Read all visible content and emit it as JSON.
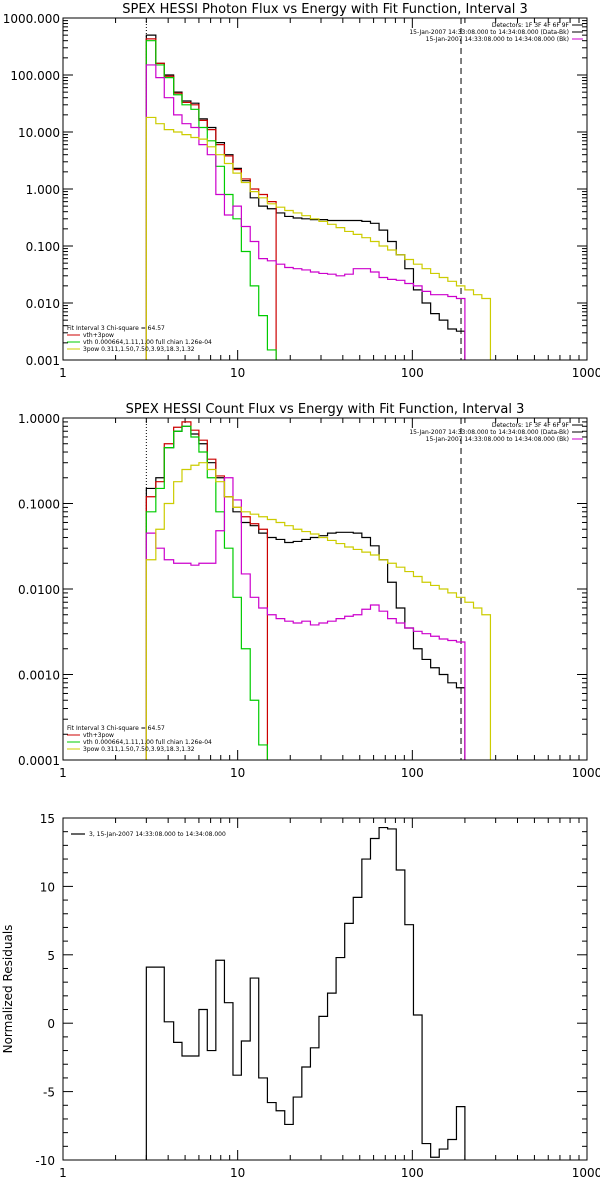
{
  "chart_data": [
    {
      "type": "line",
      "title": "SPEX HESSI Photon Flux vs Energy with Fit Function, Interval 3",
      "xscale": "log",
      "yscale": "log",
      "xlim": [
        1,
        1000
      ],
      "ylim": [
        0.001,
        1000
      ],
      "xtick_labels": [
        "1",
        "10",
        "100",
        "1000"
      ],
      "ytick_labels": [
        "0.001",
        "0.010",
        "0.100",
        "1.000",
        "10.000",
        "100.000",
        "1000.000"
      ],
      "header_lines": [
        "Detectors: 1F 3F 4F 6F 9F",
        "15-Jan-2007 14:33:08.000 to 14:34:08.000 (Data-Bk)",
        "15-Jan-2007 14:33:08.000 to 14:34:08.000 (Bk)"
      ],
      "header_colors": [
        "#000000",
        "#000000",
        "#cc00cc"
      ],
      "legend_lines": [
        "Fit Interval 3   Chi-square = 64.57",
        "vth+3pow",
        "vth 0.000664,1.11,1.00   full chian 1.26e-04",
        "3pow 0.311,1.50,7.50,3.93,18.3,1.32"
      ],
      "legend_colors": [
        "#000000",
        "#cc0000",
        "#00cc00",
        "#cccc00"
      ],
      "vlines": [
        {
          "x": 3.0,
          "style": "dotted"
        },
        {
          "x": 190,
          "style": "dashed"
        }
      ],
      "series": [
        {
          "color": "#000000",
          "edges": [
            3,
            3.4,
            3.8,
            4.3,
            4.8,
            5.4,
            6,
            6.7,
            7.5,
            8.4,
            9.4,
            10.5,
            11.8,
            13.2,
            14.8,
            16.6,
            18.6,
            20.8,
            23.3,
            26.1,
            29.2,
            32.7,
            36.6,
            41,
            45.9,
            51.4,
            57.6,
            64.5,
            72.2,
            80.9,
            90.6,
            101.5,
            113.7,
            127.3,
            142.6,
            159.7,
            178.9,
            200
          ],
          "values": [
            500,
            160,
            100,
            50,
            35,
            32,
            17,
            12,
            6.5,
            4,
            2.3,
            1.4,
            0.7,
            0.5,
            0.45,
            0.38,
            0.33,
            0.31,
            0.3,
            0.29,
            0.29,
            0.28,
            0.28,
            0.28,
            0.28,
            0.27,
            0.25,
            0.19,
            0.12,
            0.07,
            0.04,
            0.017,
            0.01,
            0.0065,
            0.005,
            0.0035,
            0.0032
          ]
        },
        {
          "color": "#cc0000",
          "edges": [
            3,
            3.4,
            3.8,
            4.3,
            4.8,
            5.4,
            6,
            6.7,
            7.5,
            8.4,
            9.4,
            10.5,
            11.8,
            13.2,
            14.8,
            16.6
          ],
          "values": [
            430,
            160,
            95,
            48,
            33,
            30,
            16,
            11,
            6,
            3.8,
            2.2,
            1.5,
            1.0,
            0.8,
            0.6
          ]
        },
        {
          "color": "#00cc00",
          "edges": [
            3,
            3.4,
            3.8,
            4.3,
            4.8,
            5.4,
            6,
            6.7,
            7.5,
            8.4,
            9.4,
            10.5,
            11.8,
            13.2,
            14.8,
            16.6
          ],
          "values": [
            400,
            150,
            90,
            45,
            30,
            25,
            12,
            7,
            2.5,
            0.8,
            0.3,
            0.08,
            0.02,
            0.006,
            0.0015
          ]
        },
        {
          "color": "#cc00cc",
          "edges": [
            3,
            3.4,
            3.8,
            4.3,
            4.8,
            5.4,
            6,
            6.7,
            7.5,
            8.4,
            9.4,
            10.5,
            11.8,
            13.2,
            14.8,
            16.6,
            18.6,
            20.8,
            23.3,
            26.1,
            29.2,
            32.7,
            36.6,
            41,
            45.9,
            51.4,
            57.6,
            64.5,
            72.2,
            80.9,
            90.6,
            101.5,
            113.7,
            127.3,
            142.6,
            159.7,
            178.9,
            200
          ],
          "values": [
            150,
            90,
            40,
            20,
            14,
            12,
            6,
            4,
            0.8,
            0.35,
            0.5,
            0.22,
            0.12,
            0.06,
            0.055,
            0.048,
            0.042,
            0.04,
            0.038,
            0.035,
            0.033,
            0.032,
            0.03,
            0.032,
            0.04,
            0.04,
            0.035,
            0.028,
            0.026,
            0.025,
            0.022,
            0.02,
            0.016,
            0.014,
            0.014,
            0.013,
            0.012
          ]
        },
        {
          "color": "#cccc00",
          "edges": [
            3,
            3.4,
            3.8,
            4.3,
            4.8,
            5.4,
            6,
            6.7,
            7.5,
            8.4,
            9.4,
            10.5,
            11.8,
            13.2,
            14.8,
            16.6,
            18.6,
            20.8,
            23.3,
            26.1,
            29.2,
            32.7,
            36.6,
            41,
            45.9,
            51.4,
            57.6,
            64.5,
            72.2,
            80.9,
            90.6,
            101.5,
            113.7,
            127.3,
            142.6,
            159.7,
            178.9,
            200,
            224,
            250,
            280
          ],
          "values": [
            18,
            14,
            11,
            10,
            9,
            8,
            7.5,
            5.5,
            4,
            2.8,
            1.9,
            1.3,
            0.9,
            0.7,
            0.55,
            0.48,
            0.42,
            0.38,
            0.34,
            0.3,
            0.27,
            0.24,
            0.21,
            0.18,
            0.16,
            0.14,
            0.12,
            0.1,
            0.085,
            0.07,
            0.058,
            0.048,
            0.04,
            0.033,
            0.028,
            0.024,
            0.02,
            0.017,
            0.014,
            0.012
          ]
        }
      ]
    },
    {
      "type": "line",
      "title": "SPEX HESSI Count Flux vs Energy with Fit Function, Interval 3",
      "xscale": "log",
      "yscale": "log",
      "xlim": [
        1,
        1000
      ],
      "ylim": [
        0.0001,
        1
      ],
      "xtick_labels": [
        "1",
        "10",
        "100",
        "1000"
      ],
      "ytick_labels": [
        "0.0001",
        "0.0010",
        "0.0100",
        "0.1000",
        "1.0000"
      ],
      "header_lines": [
        "Detectors: 1F 3F 4F 6F 9F",
        "15-Jan-2007 14:33:08.000 to 14:34:08.000 (Data-Bk)",
        "15-Jan-2007 14:33:08.000 to 14:34:08.000 (Bk)"
      ],
      "header_colors": [
        "#000000",
        "#000000",
        "#cc00cc"
      ],
      "legend_lines": [
        "Fit Interval 3   Chi-square = 64.57",
        "vth+3pow",
        "vth 0.000664,1.11,1.00   full chian 1.26e-04",
        "3pow 0.311,1.50,7.50,3.93,18.3,1.32"
      ],
      "legend_colors": [
        "#000000",
        "#cc0000",
        "#00cc00",
        "#cccc00"
      ],
      "vlines": [
        {
          "x": 3.0,
          "style": "dotted"
        },
        {
          "x": 190,
          "style": "dashed"
        }
      ],
      "series": [
        {
          "color": "#000000",
          "edges": [
            3,
            3.4,
            3.8,
            4.3,
            4.8,
            5.4,
            6,
            6.7,
            7.5,
            8.4,
            9.4,
            10.5,
            11.8,
            13.2,
            14.8,
            16.6,
            18.6,
            20.8,
            23.3,
            26.1,
            29.2,
            32.7,
            36.6,
            41,
            45.9,
            51.4,
            57.6,
            64.5,
            72.2,
            80.9,
            90.6,
            101.5,
            113.7,
            127.3,
            142.6,
            159.7,
            178.9,
            200
          ],
          "values": [
            0.15,
            0.2,
            0.45,
            0.7,
            0.8,
            0.65,
            0.5,
            0.3,
            0.2,
            0.12,
            0.08,
            0.06,
            0.055,
            0.045,
            0.04,
            0.038,
            0.035,
            0.036,
            0.038,
            0.04,
            0.042,
            0.045,
            0.046,
            0.046,
            0.045,
            0.04,
            0.032,
            0.022,
            0.012,
            0.006,
            0.0035,
            0.002,
            0.0015,
            0.0012,
            0.001,
            0.0008,
            0.0007
          ]
        },
        {
          "color": "#cc0000",
          "edges": [
            3,
            3.4,
            3.8,
            4.3,
            4.8,
            5.4,
            6,
            6.7,
            7.5,
            8.4,
            9.4,
            10.5,
            11.8,
            13.2,
            14.8
          ],
          "values": [
            0.12,
            0.18,
            0.5,
            0.78,
            0.9,
            0.72,
            0.55,
            0.33,
            0.21,
            0.12,
            0.09,
            0.07,
            0.058,
            0.05
          ]
        },
        {
          "color": "#00cc00",
          "edges": [
            3,
            3.4,
            3.8,
            4.3,
            4.8,
            5.4,
            6,
            6.7,
            7.5,
            8.4,
            9.4,
            10.5,
            11.8,
            13.2,
            14.8
          ],
          "values": [
            0.08,
            0.15,
            0.45,
            0.7,
            0.8,
            0.6,
            0.4,
            0.2,
            0.08,
            0.03,
            0.008,
            0.002,
            0.0005,
            0.00015
          ]
        },
        {
          "color": "#cc00cc",
          "edges": [
            3,
            3.4,
            3.8,
            4.3,
            4.8,
            5.4,
            6,
            6.7,
            7.5,
            8.4,
            9.4,
            10.5,
            11.8,
            13.2,
            14.8,
            16.6,
            18.6,
            20.8,
            23.3,
            26.1,
            29.2,
            32.7,
            36.6,
            41,
            45.9,
            51.4,
            57.6,
            64.5,
            72.2,
            80.9,
            90.6,
            101.5,
            113.7,
            127.3,
            142.6,
            159.7,
            178.9,
            200
          ],
          "values": [
            0.045,
            0.03,
            0.022,
            0.02,
            0.02,
            0.019,
            0.02,
            0.02,
            0.048,
            0.2,
            0.11,
            0.015,
            0.008,
            0.006,
            0.005,
            0.0045,
            0.0042,
            0.004,
            0.0042,
            0.0038,
            0.004,
            0.0042,
            0.0045,
            0.0048,
            0.005,
            0.0058,
            0.0065,
            0.0055,
            0.0045,
            0.004,
            0.0035,
            0.0032,
            0.003,
            0.0028,
            0.0026,
            0.0025,
            0.0024
          ]
        },
        {
          "color": "#cccc00",
          "edges": [
            3,
            3.4,
            3.8,
            4.3,
            4.8,
            5.4,
            6,
            6.7,
            7.5,
            8.4,
            9.4,
            10.5,
            11.8,
            13.2,
            14.8,
            16.6,
            18.6,
            20.8,
            23.3,
            26.1,
            29.2,
            32.7,
            36.6,
            41,
            45.9,
            51.4,
            57.6,
            64.5,
            72.2,
            80.9,
            90.6,
            101.5,
            113.7,
            127.3,
            142.6,
            159.7,
            178.9,
            200,
            224,
            250,
            280
          ],
          "values": [
            0.022,
            0.05,
            0.1,
            0.18,
            0.25,
            0.28,
            0.3,
            0.25,
            0.18,
            0.12,
            0.09,
            0.08,
            0.075,
            0.07,
            0.065,
            0.06,
            0.055,
            0.05,
            0.047,
            0.044,
            0.04,
            0.037,
            0.034,
            0.031,
            0.029,
            0.027,
            0.025,
            0.022,
            0.02,
            0.018,
            0.016,
            0.014,
            0.012,
            0.011,
            0.01,
            0.009,
            0.008,
            0.007,
            0.006,
            0.005
          ]
        }
      ]
    },
    {
      "type": "line",
      "title": "",
      "xscale": "log",
      "yscale": "linear",
      "xlim": [
        1,
        1000
      ],
      "ylim": [
        -10,
        15
      ],
      "ylabel": "Normalized Residuals",
      "xtick_labels": [
        "1",
        "10",
        "100",
        "1000"
      ],
      "ytick_labels": [
        "-10",
        "-5",
        "0",
        "5",
        "10",
        "15"
      ],
      "legend_lines": [
        "3, 15-Jan-2007 14:33:08.000 to 14:34:08.000"
      ],
      "legend_colors": [
        "#000000"
      ],
      "series": [
        {
          "color": "#000000",
          "edges": [
            3,
            3.4,
            3.8,
            4.3,
            4.8,
            5.4,
            6,
            6.7,
            7.5,
            8.4,
            9.4,
            10.5,
            11.8,
            13.2,
            14.8,
            16.6,
            18.6,
            20.8,
            23.3,
            26.1,
            29.2,
            32.7,
            36.6,
            41,
            45.9,
            51.4,
            57.6,
            64.5,
            72.2,
            80.9,
            90.6,
            101.5,
            113.7,
            127.3,
            142.6,
            159.7,
            178.9,
            200
          ],
          "values": [
            4.1,
            4.1,
            0.1,
            -1.4,
            -2.4,
            -2.4,
            1,
            -2,
            4.6,
            1.5,
            -3.8,
            -1.3,
            3.3,
            -4,
            -5.8,
            -6.4,
            -7.4,
            -5.4,
            -3.2,
            -1.8,
            0.5,
            2.2,
            4.8,
            7.3,
            9.2,
            12,
            13.5,
            14.3,
            14.2,
            11.2,
            7.2,
            0.6,
            -8.8,
            -9.8,
            -9.2,
            -8.5,
            -6.1
          ]
        }
      ]
    }
  ]
}
